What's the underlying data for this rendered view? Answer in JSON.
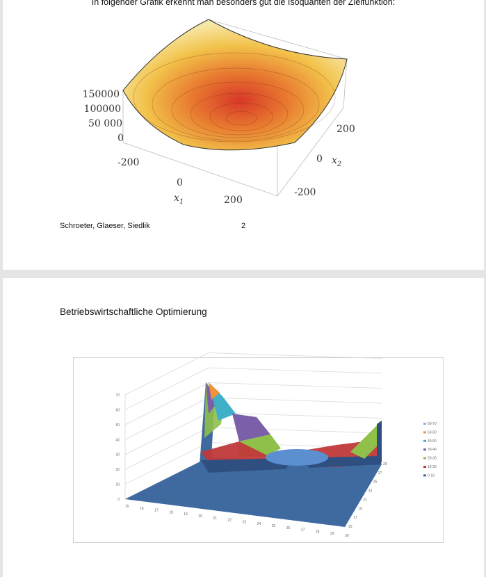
{
  "page1": {
    "intro_text": "In folgender Grafik erkennt man besonders gut die Isoquanten der Zielfunktion:",
    "plot": {
      "z_ticks": [
        "150000",
        "100000",
        "50 000",
        "0"
      ],
      "x1_ticks": [
        "-200",
        "0",
        "200"
      ],
      "x2_ticks": [
        "200",
        "0",
        "-200"
      ],
      "x1_label": "x",
      "x1_sub": "1",
      "x2_label": "x",
      "x2_sub": "2"
    },
    "footer_authors": "Schroeter, Glaeser, Siedlik",
    "page_number": "2"
  },
  "page2": {
    "heading": "Betriebswirtschaftliche Optimierung",
    "chart_data": {
      "type": "surface",
      "z_ticks": [
        "0",
        "10",
        "20",
        "30",
        "40",
        "50",
        "60",
        "70"
      ],
      "x_ticks": [
        "15",
        "16",
        "17",
        "18",
        "19",
        "20",
        "21",
        "22",
        "23",
        "24",
        "25",
        "26",
        "27",
        "28",
        "29",
        "30"
      ],
      "y_ticks": [
        "15",
        "17",
        "19",
        "21",
        "23",
        "25",
        "27",
        "29"
      ],
      "zlim": [
        0,
        70
      ],
      "legend": [
        {
          "label": "60-70",
          "color": "#8fb0e0"
        },
        {
          "label": "50-60",
          "color": "#f0923a"
        },
        {
          "label": "40-50",
          "color": "#3fb0c8"
        },
        {
          "label": "30-40",
          "color": "#7b5fa8"
        },
        {
          "label": "20-30",
          "color": "#8ec04a"
        },
        {
          "label": "10-20",
          "color": "#c0393a"
        },
        {
          "label": "0-10",
          "color": "#3e6aa0"
        }
      ],
      "legend_position": "right"
    }
  }
}
